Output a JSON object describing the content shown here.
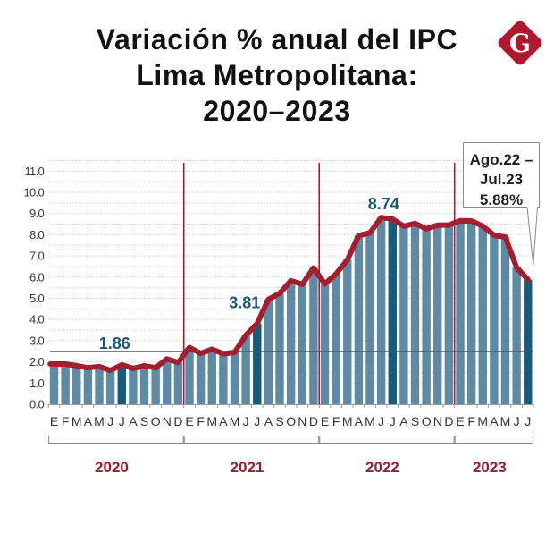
{
  "header": {
    "title_lines": [
      "Variación % anual del IPC",
      "Lima Metropolitana:",
      "2020–2023"
    ],
    "logo_letter": "G"
  },
  "colors": {
    "bar": "#5e8aa6",
    "bar_highlight": "#175a79",
    "line": "#a51e2e",
    "separator": "#a51e2e",
    "year_label": "#9c1d2e",
    "annotation": "#1d5877",
    "bracket": "#7d889c",
    "reference_line": "#555555",
    "logo": "#b0182d"
  },
  "chart_data": {
    "type": "bar",
    "title": "Variación % anual del IPC Lima Metropolitana: 2020–2023",
    "xlabel": "",
    "ylabel": "",
    "ylim": [
      0,
      11.5
    ],
    "y_ticks": [
      "0.0",
      "1.0",
      "2.0",
      "3.0",
      "4.0",
      "5.0",
      "6.0",
      "7.0",
      "8.0",
      "9.0",
      "10.0",
      "11.0"
    ],
    "grid": true,
    "categories": [
      "E",
      "F",
      "M",
      "A",
      "M",
      "J",
      "J",
      "A",
      "S",
      "O",
      "N",
      "D",
      "E",
      "F",
      "M",
      "A",
      "M",
      "J",
      "J",
      "A",
      "S",
      "O",
      "N",
      "D",
      "E",
      "F",
      "M",
      "A",
      "M",
      "J",
      "J",
      "A",
      "S",
      "O",
      "N",
      "D",
      "E",
      "F",
      "M",
      "A",
      "M",
      "J",
      "J"
    ],
    "groups": [
      {
        "label": "2020",
        "count": 12
      },
      {
        "label": "2021",
        "count": 12
      },
      {
        "label": "2022",
        "count": 12
      },
      {
        "label": "2023",
        "count": 7
      }
    ],
    "values": [
      1.9,
      1.9,
      1.82,
      1.72,
      1.78,
      1.6,
      1.86,
      1.69,
      1.82,
      1.72,
      2.14,
      1.97,
      2.68,
      2.4,
      2.6,
      2.38,
      2.45,
      3.25,
      3.81,
      4.95,
      5.23,
      5.83,
      5.66,
      6.43,
      5.68,
      6.15,
      6.82,
      7.96,
      8.09,
      8.81,
      8.74,
      8.4,
      8.53,
      8.28,
      8.45,
      8.46,
      8.66,
      8.65,
      8.4,
      7.97,
      7.89,
      6.46,
      5.88
    ],
    "highlighted_indices": [
      6,
      18,
      30,
      42
    ],
    "line_overlay": true,
    "reference_line_value": 2.5,
    "annotations": [
      {
        "index": 6,
        "text": "1.86"
      },
      {
        "index": 18,
        "text": "3.81"
      },
      {
        "index": 30,
        "text": "8.74"
      }
    ],
    "callout": {
      "index": 42,
      "lines": [
        "Ago.22 –",
        "Jul.23",
        "5.88%"
      ]
    }
  }
}
